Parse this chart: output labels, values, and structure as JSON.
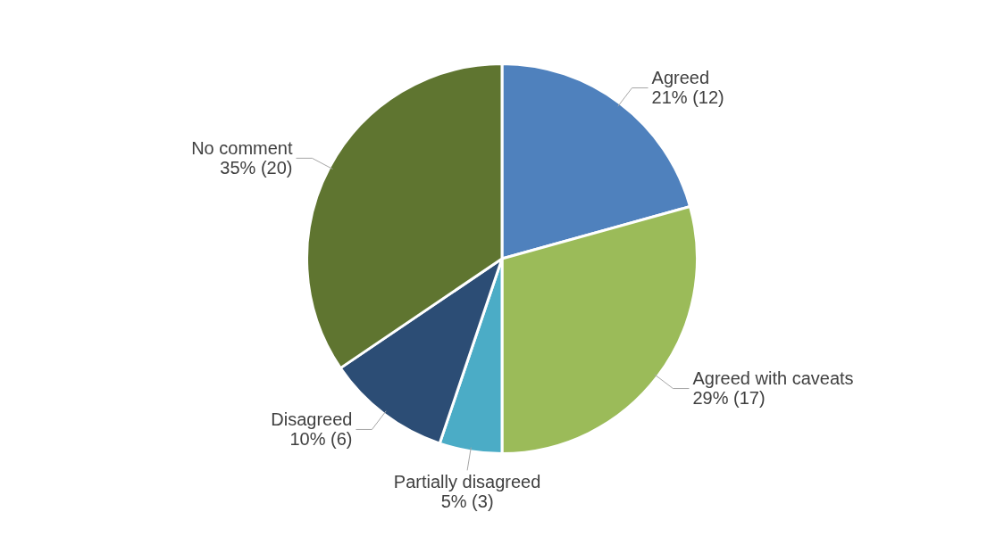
{
  "chart_data": {
    "type": "pie",
    "categories": [
      "Agreed",
      "Agreed with caveats",
      "Partially disagreed",
      "Disagreed",
      "No comment"
    ],
    "values": [
      12,
      17,
      3,
      6,
      20
    ],
    "value_labels": [
      "21% (12)",
      "29% (17)",
      "5% (3)",
      "10% (6)",
      "35% (20)"
    ],
    "colors": [
      "#4f81bd",
      "#9bbb59",
      "#4bacc6",
      "#2c4d75",
      "#5f7530"
    ],
    "legend": false
  }
}
